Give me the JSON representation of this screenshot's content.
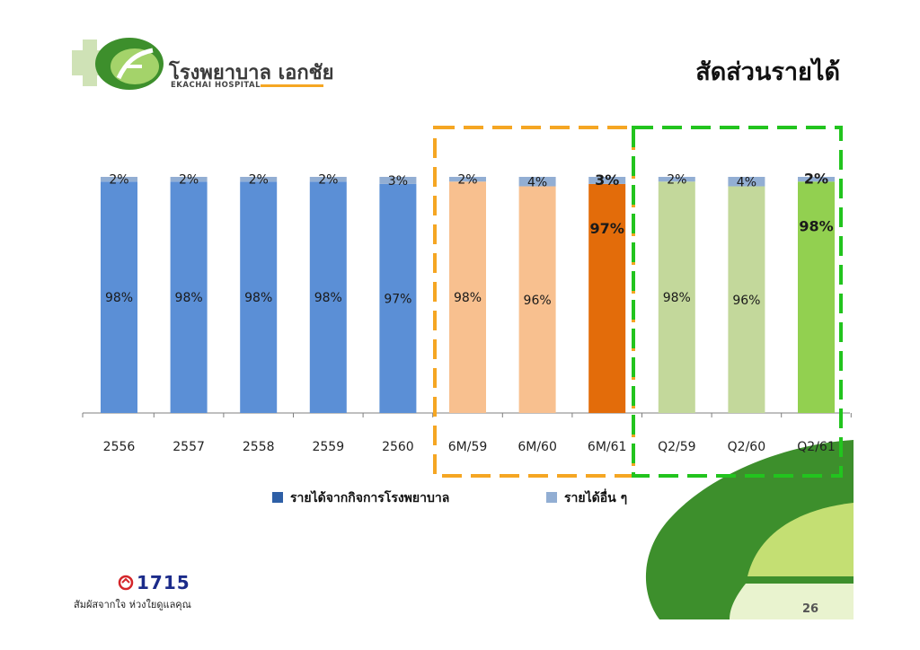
{
  "header": {
    "logo_thai": "โรงพยาบาล เอกชัย",
    "logo_english": "EKACHAI HOSPITAL",
    "title": "สัดส่วนรายได้"
  },
  "footer": {
    "hotline": "1715",
    "slogan": "สัมผัสจากใจ ห่วงใยดูแลคุณ",
    "page_number": "26"
  },
  "colors": {
    "annual_hospital": "#5b8fd6",
    "annual_other": "#92aed3",
    "h1_2016_hospital": "#f8c08f",
    "h1_2017_hospital": "#f8c08f",
    "h1_2018_hospital": "#e36c0a",
    "h1_other": "#92aed3",
    "q2_2016_hospital": "#c3d89b",
    "q2_2017_hospital": "#c3d89b",
    "q2_2018_hospital": "#92d050",
    "q2_other": "#92aed3",
    "orange_box": "#f5a623",
    "green_box": "#22c41e"
  },
  "chart_data": {
    "type": "bar",
    "stacked": true,
    "categories": [
      "2556",
      "2557",
      "2558",
      "2559",
      "2560",
      "6M/59",
      "6M/60",
      "6M/61",
      "Q2/59",
      "Q2/60",
      "Q2/61"
    ],
    "series": [
      {
        "name": "รายได้จากกิจการโรงพยาบาล",
        "values": [
          98,
          98,
          98,
          98,
          97,
          98,
          96,
          97,
          98,
          96,
          98
        ],
        "labels": [
          "98%",
          "98%",
          "98%",
          "98%",
          "97%",
          "98%",
          "96%",
          "97%",
          "98%",
          "96%",
          "98%"
        ]
      },
      {
        "name": "รายได้อื่น ๆ",
        "values": [
          2,
          2,
          2,
          2,
          3,
          2,
          4,
          3,
          2,
          4,
          2
        ],
        "labels": [
          "2%",
          "2%",
          "2%",
          "2%",
          "3%",
          "2%",
          "4%",
          "3%",
          "2%",
          "4%",
          "2%"
        ]
      }
    ],
    "ylim": [
      0,
      100
    ],
    "grid": false,
    "legend_position": "bottom",
    "highlight_groups": [
      {
        "categories": [
          "6M/59",
          "6M/60",
          "6M/61"
        ],
        "style": "dashed-orange"
      },
      {
        "categories": [
          "Q2/59",
          "Q2/60",
          "Q2/61"
        ],
        "style": "dashed-green"
      }
    ]
  }
}
